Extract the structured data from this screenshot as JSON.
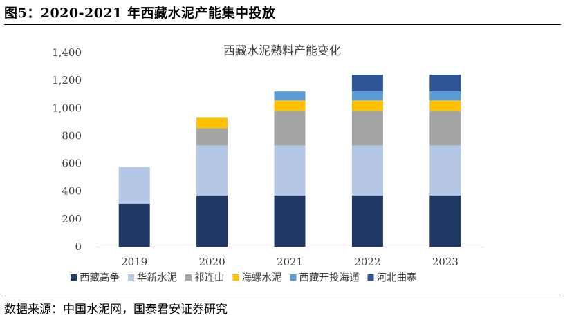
{
  "figure": {
    "title": "图5：2020-2021 年西藏水泥产能集中投放",
    "source": "数据来源：中国水泥网，国泰君安证券研究"
  },
  "chart_data": {
    "type": "bar",
    "stacked": true,
    "title": "西藏水泥熟料产能变化",
    "xlabel": "",
    "ylabel": "",
    "ylim": [
      0,
      1400
    ],
    "yticks": [
      0,
      200,
      400,
      600,
      800,
      1000,
      1200,
      1400
    ],
    "ytick_labels": [
      "0",
      "200",
      "400",
      "600",
      "800",
      "1,000",
      "1,200",
      "1,400"
    ],
    "grid": false,
    "legend_position": "bottom",
    "categories": [
      "2019",
      "2020",
      "2021",
      "2022",
      "2023"
    ],
    "series": [
      {
        "name": "西藏高争",
        "color": "#1f3864",
        "values": [
          310,
          370,
          370,
          370,
          370
        ]
      },
      {
        "name": "华新水泥",
        "color": "#b4c7e7",
        "values": [
          265,
          360,
          360,
          360,
          360
        ]
      },
      {
        "name": "祁连山",
        "color": "#a5a5a5",
        "values": [
          0,
          125,
          250,
          250,
          250
        ]
      },
      {
        "name": "海螺水泥",
        "color": "#ffc000",
        "values": [
          0,
          75,
          75,
          75,
          75
        ]
      },
      {
        "name": "西藏开投海通",
        "color": "#5b9bd5",
        "values": [
          0,
          0,
          65,
          65,
          65
        ]
      },
      {
        "name": "河北曲寨",
        "color": "#2f5597",
        "values": [
          0,
          0,
          0,
          120,
          120
        ]
      }
    ]
  }
}
